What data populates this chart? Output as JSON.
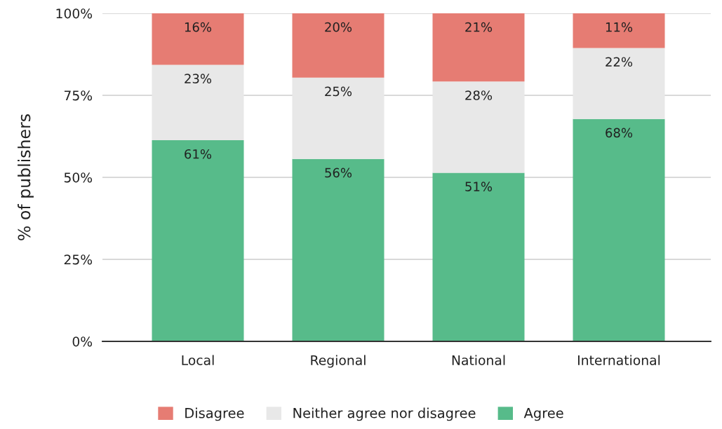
{
  "chart_data": {
    "type": "bar",
    "stacked": true,
    "ylabel": "% of publishers",
    "categories": [
      "Local",
      "Regional",
      "National",
      "International"
    ],
    "series": [
      {
        "name": "Agree",
        "color": "#57bb8a",
        "values": [
          61.3,
          55.6,
          51.4,
          67.8
        ],
        "value_labels": [
          "61%",
          "56%",
          "51%",
          "68%"
        ]
      },
      {
        "name": "Neither agree nor disagree",
        "color": "#e8e8e8",
        "values": [
          23.0,
          24.8,
          27.8,
          21.6
        ],
        "value_labels": [
          "23%",
          "25%",
          "28%",
          "22%"
        ]
      },
      {
        "name": "Disagree",
        "color": "#e67c73",
        "values": [
          15.7,
          19.6,
          20.8,
          10.6
        ],
        "value_labels": [
          "16%",
          "20%",
          "21%",
          "11%"
        ]
      }
    ],
    "ylim": [
      0,
      100
    ],
    "yticks": [
      {
        "value": 0,
        "label": "0%"
      },
      {
        "value": 25,
        "label": "25%"
      },
      {
        "value": 50,
        "label": "50%"
      },
      {
        "value": 75,
        "label": "75%"
      },
      {
        "value": 100,
        "label": "100%"
      }
    ],
    "grid": "y",
    "legend": "bottom"
  }
}
